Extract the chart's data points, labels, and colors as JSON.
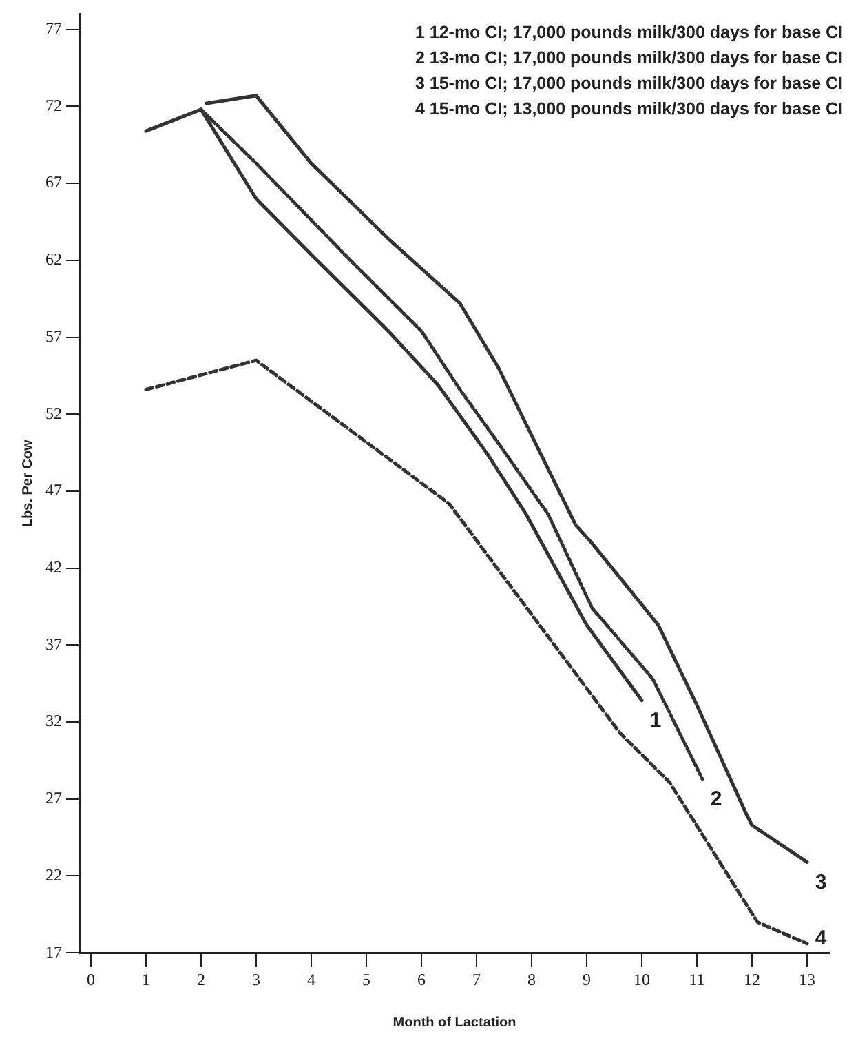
{
  "chart_data": {
    "type": "line",
    "xlabel": "Month of Lactation",
    "ylabel": "Lbs. Per Cow",
    "xlim": [
      -0.2,
      13.4
    ],
    "xticks": [
      0,
      1,
      2,
      3,
      4,
      5,
      6,
      7,
      8,
      9,
      10,
      11,
      12,
      13
    ],
    "ylim": [
      17,
      78
    ],
    "yticks": [
      17,
      22,
      27,
      32,
      37,
      42,
      47,
      52,
      57,
      62,
      67,
      72,
      77
    ],
    "grid": false,
    "legend": false,
    "marker": "none",
    "series": [
      {
        "color": "#333333",
        "line_style": "solid",
        "x": [
          1,
          2,
          3,
          4.05,
          5.4,
          6.3,
          7.2,
          7.9,
          9,
          10
        ],
        "values": [
          70.4,
          71.8,
          66.0,
          62.2,
          57.4,
          53.9,
          49.4,
          45.5,
          38.3,
          33.4
        ]
      },
      {
        "color": "#333333",
        "line_style": "dotted",
        "x": [
          2,
          3,
          4.6,
          6.0,
          6.7,
          7.4,
          8.3,
          9.1,
          10.2,
          11.1
        ],
        "values": [
          71.8,
          68.3,
          62.4,
          57.4,
          53.6,
          50.1,
          45.5,
          39.4,
          34.8,
          28.3
        ]
      },
      {
        "color": "#333333",
        "line_style": "solid",
        "x": [
          2.1,
          3.0,
          4.0,
          5.4,
          6.7,
          7.4,
          8.8,
          9.1,
          10.3,
          11.0,
          11.9,
          12.0,
          13.0
        ],
        "values": [
          72.2,
          72.7,
          68.3,
          63.4,
          59.2,
          55.0,
          44.8,
          43.6,
          38.3,
          33.1,
          26.0,
          25.3,
          22.9
        ]
      },
      {
        "color": "#333333",
        "line_style": "dashed",
        "x": [
          1,
          3.0,
          6.5,
          9.6,
          10.5,
          12.1,
          13.0
        ],
        "values": [
          53.6,
          55.5,
          46.2,
          31.3,
          28.1,
          19.0,
          17.6
        ]
      }
    ],
    "annotations": [
      "1 12-mo CI; 17,000 pounds milk/300 days for base CI",
      "2 13-mo CI; 17,000 pounds milk/300 days for base CI",
      "3 15-mo CI; 17,000 pounds milk/300 days for base CI",
      "4 15-mo CI; 13,000 pounds milk/300 days for base CI",
      {
        "text": "1",
        "x": 10,
        "y": 33.4
      },
      {
        "text": "2",
        "x": 11.1,
        "y": 28.3
      },
      {
        "text": "3",
        "x": 13.0,
        "y": 22.9
      },
      {
        "text": "4",
        "x": 13.0,
        "y": 17.6
      }
    ]
  }
}
